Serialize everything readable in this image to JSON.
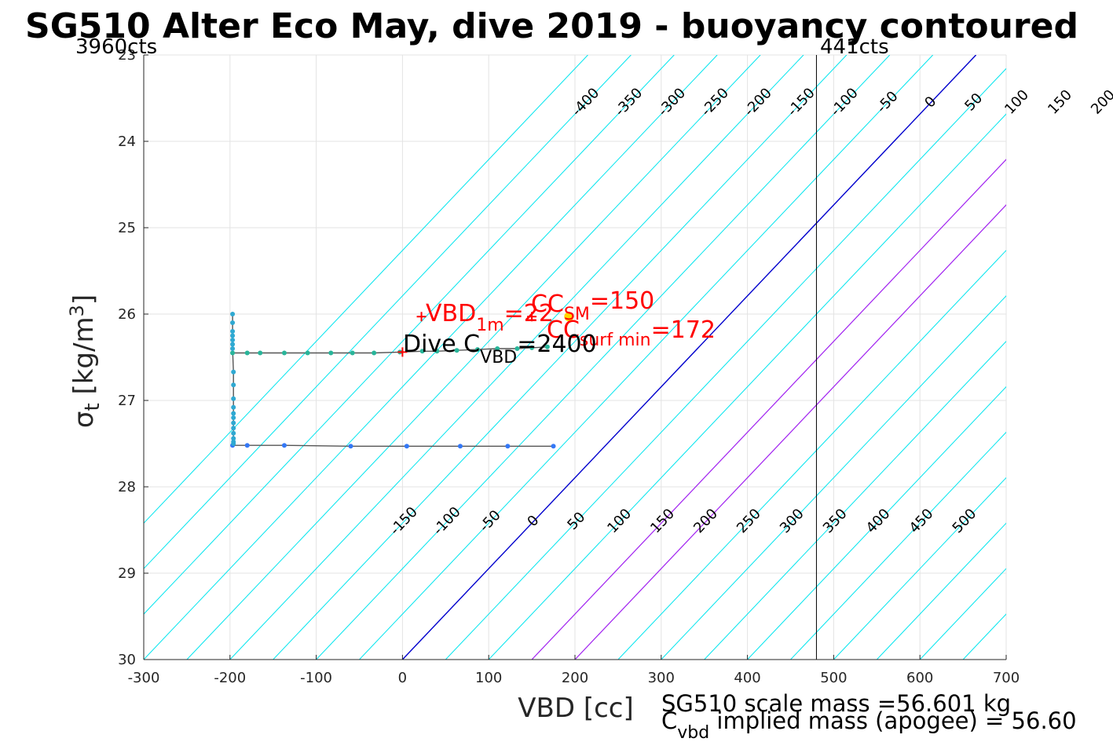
{
  "chart_data": {
    "type": "scatter",
    "title": "SG510 Alter Eco May, dive 2019 - buoyancy contoured",
    "xlabel": "VBD [cc]",
    "ylabel": "σ_t [kg/m^3]",
    "ylabel_parts": {
      "sym": "σ",
      "sub": "t",
      "main": " [kg/m",
      "sup": "3",
      "close": "]"
    },
    "xlim": [
      -300,
      700
    ],
    "ylim": [
      23,
      30
    ],
    "y_reversed": true,
    "grid": true,
    "x_ticks": [
      "-300",
      "-200",
      "-100",
      "0",
      "100",
      "200",
      "300",
      "400",
      "500",
      "600",
      "700"
    ],
    "y_ticks": [
      "23",
      "24",
      "25",
      "26",
      "27",
      "28",
      "29",
      "30"
    ],
    "count_labels": {
      "left": "3960cts",
      "right": "441cts"
    },
    "max_vbd_x": 480,
    "contour_levels": [
      -450,
      -400,
      -350,
      -300,
      -250,
      -200,
      -150,
      -100,
      -50,
      0,
      50,
      100,
      150,
      200,
      250,
      300,
      350,
      400,
      450,
      500,
      550,
      600,
      650,
      700,
      750,
      800,
      850,
      900,
      950,
      1000
    ],
    "contour_labels_top": [
      "-400",
      "-350",
      "-300",
      "-250",
      "-200",
      "-150",
      "-100",
      "-50",
      "0",
      "50",
      "100",
      "150",
      "200",
      "250",
      "300",
      "350",
      "400",
      "450",
      "500"
    ],
    "contour_labels_top_levels": [
      -400,
      -350,
      -300,
      -250,
      -200,
      -150,
      -100,
      -50,
      0,
      50,
      100,
      150,
      200,
      250,
      300,
      350,
      400,
      450,
      500
    ],
    "contour_labels_bottom": [
      "-150",
      "-100",
      "-50",
      "0",
      "50",
      "100",
      "150",
      "200",
      "250",
      "300",
      "350",
      "400",
      "450",
      "500"
    ],
    "contour_labels_bottom_levels": [
      -150,
      -100,
      -50,
      0,
      50,
      100,
      150,
      200,
      250,
      300,
      350,
      400,
      450,
      500
    ],
    "colors": {
      "contour": "#00e5ee",
      "zero_line": "#0000cd",
      "purple_line": "#a020f0",
      "trace": "#555555",
      "annotation": "#ff0000",
      "marker_yellow": "#ffd700"
    },
    "purple_levels": [
      150,
      200
    ],
    "series": [
      {
        "name": "upper leg",
        "color": "#29b59a",
        "points": [
          [
            -197,
            26.45
          ],
          [
            -180,
            26.45
          ],
          [
            -165,
            26.45
          ],
          [
            -137,
            26.45
          ],
          [
            -110,
            26.45
          ],
          [
            -83,
            26.45
          ],
          [
            -58,
            26.45
          ],
          [
            -33,
            26.45
          ],
          [
            -3,
            26.44
          ],
          [
            23,
            26.43
          ],
          [
            40,
            26.43
          ],
          [
            63,
            26.42
          ],
          [
            87,
            26.41
          ],
          [
            110,
            26.4
          ],
          [
            133,
            26.4
          ],
          [
            150,
            26.39
          ],
          [
            168,
            26.38
          ]
        ]
      },
      {
        "name": "deep leg",
        "color": "#3478f6",
        "points": [
          [
            -197,
            27.52
          ],
          [
            -180,
            27.52
          ],
          [
            -137,
            27.52
          ],
          [
            -60,
            27.53
          ],
          [
            5,
            27.53
          ],
          [
            67,
            27.53
          ],
          [
            122,
            27.53
          ],
          [
            175,
            27.53
          ]
        ]
      },
      {
        "name": "vertical",
        "color": "#2fa9d2",
        "points": [
          [
            -197,
            26.0
          ],
          [
            -197,
            26.1
          ],
          [
            -197,
            26.2
          ],
          [
            -197,
            26.25
          ],
          [
            -197,
            26.3
          ],
          [
            -197,
            26.35
          ],
          [
            -197,
            26.4
          ],
          [
            -196,
            26.67
          ],
          [
            -196,
            26.82
          ],
          [
            -196,
            26.98
          ],
          [
            -196,
            27.08
          ],
          [
            -196,
            27.15
          ],
          [
            -196,
            27.2
          ],
          [
            -196,
            27.26
          ],
          [
            -196,
            27.32
          ],
          [
            -196,
            27.38
          ],
          [
            -196,
            27.44
          ],
          [
            -196,
            27.48
          ],
          [
            -196,
            27.5
          ]
        ]
      }
    ],
    "annotations": {
      "vbd1m_main": "VBD",
      "vbd1m_sub": "1m",
      "vbd1m_value": "=22",
      "cc_label": "CC",
      "cc_sm_sub": "SM",
      "cc_sm_value": "=150",
      "cc_surf_main": "CC",
      "cc_surf_sub": "surf min",
      "cc_surf_value": "=172",
      "dive_main": "Dive C",
      "dive_sub": "VBD",
      "dive_value": "=2400"
    },
    "markers": [
      {
        "name": "vbd1m-marker",
        "x": 22,
        "y": 26.03,
        "color": "#ff0000"
      },
      {
        "name": "ccsm-marker",
        "x": 150,
        "y": 26.03,
        "color": "#ff0000"
      },
      {
        "name": "dive-marker",
        "x": 0,
        "y": 26.44,
        "color": "#ff0000"
      },
      {
        "name": "surf-marker",
        "x": 193,
        "y": 26.03,
        "color": "#ffd700"
      }
    ],
    "footer": {
      "line1": "SG510 scale mass =56.601 kg",
      "line2_main": "C",
      "line2_sub": "vbd",
      "line2_rest": " implied mass (apogee) = 56.60"
    }
  }
}
